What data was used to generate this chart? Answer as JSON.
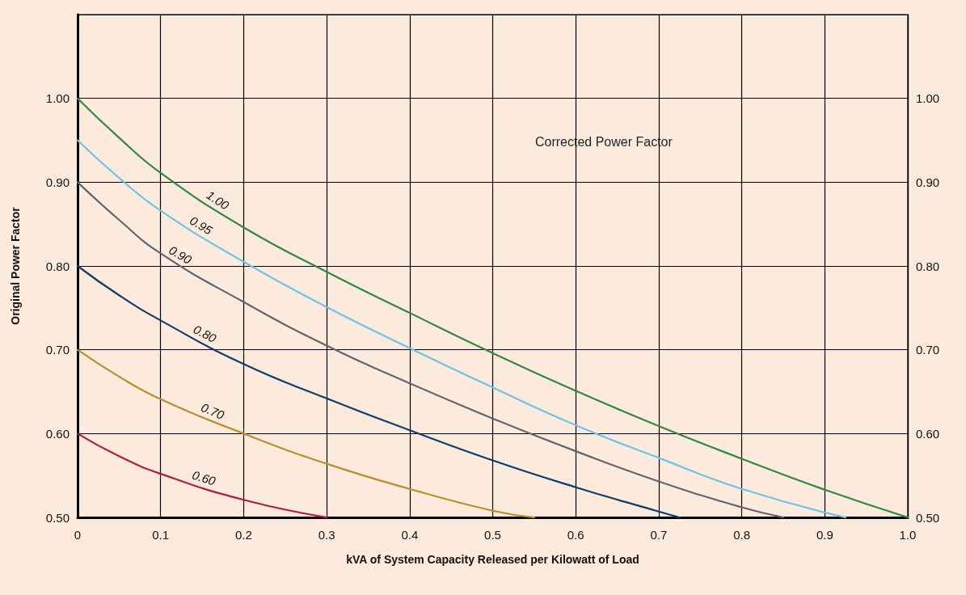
{
  "chart_data": {
    "type": "line",
    "xlabel": "kVA of System Capacity Released per Kilowatt of Load",
    "ylabel": "Original Power Factor",
    "annotations": [
      "Corrected Power Factor"
    ],
    "xlim": [
      0,
      1.0
    ],
    "xticks": [
      0,
      0.1,
      0.2,
      0.3,
      0.4,
      0.5,
      0.6,
      0.7,
      0.8,
      0.9,
      {
        "value": 1.0,
        "label": "1.0"
      }
    ],
    "ylim": [
      0.5,
      1.1
    ],
    "yticks": [
      {
        "value": 0.5,
        "label": "0.50"
      },
      {
        "value": 0.6,
        "label": "0.60"
      },
      {
        "value": 0.7,
        "label": "0.70"
      },
      {
        "value": 0.8,
        "label": "0.80"
      },
      {
        "value": 0.9,
        "label": "0.90"
      },
      {
        "value": 1.0,
        "label": "1.00"
      },
      {
        "value": 1.1,
        "label": null
      }
    ],
    "y2lim": [
      0.5,
      1.1
    ],
    "y2ticks": [
      {
        "value": 0.5,
        "label": "0.50"
      },
      {
        "value": 0.6,
        "label": "0.60"
      },
      {
        "value": 0.7,
        "label": "0.70"
      },
      {
        "value": 0.8,
        "label": "0.80"
      },
      {
        "value": 0.9,
        "label": "0.90"
      },
      {
        "value": 1.0,
        "label": "1.00"
      },
      {
        "value": 1.1,
        "label": null
      }
    ],
    "grid": true,
    "marker": "none",
    "line_style": "solid",
    "series": [
      {
        "name": "1.00",
        "color": "#2e8b3e",
        "x": [
          0,
          0.05,
          0.1,
          0.2,
          0.3,
          0.4,
          0.5,
          0.6,
          0.7,
          0.8,
          0.9,
          1.0
        ],
        "values": [
          1.0,
          0.953,
          0.911,
          0.846,
          0.793,
          0.744,
          0.696,
          0.651,
          0.609,
          0.57,
          0.533,
          0.5
        ]
      },
      {
        "name": "0.95",
        "color": "#6cc4e8",
        "x": [
          0,
          0.05,
          0.1,
          0.2,
          0.3,
          0.4,
          0.5,
          0.6,
          0.7,
          0.8,
          0.925
        ],
        "values": [
          0.95,
          0.905,
          0.866,
          0.805,
          0.751,
          0.702,
          0.655,
          0.61,
          0.571,
          0.534,
          0.5
        ]
      },
      {
        "name": "0.90",
        "color": "#5f6670",
        "x": [
          0,
          0.05,
          0.1,
          0.2,
          0.3,
          0.4,
          0.5,
          0.6,
          0.7,
          0.8,
          0.85
        ],
        "values": [
          0.9,
          0.855,
          0.815,
          0.757,
          0.705,
          0.66,
          0.618,
          0.579,
          0.543,
          0.512,
          0.5
        ]
      },
      {
        "name": "0.80",
        "color": "#0d3d6b",
        "x": [
          0,
          0.05,
          0.1,
          0.2,
          0.3,
          0.4,
          0.5,
          0.6,
          0.7,
          0.725
        ],
        "values": [
          0.8,
          0.765,
          0.735,
          0.683,
          0.642,
          0.604,
          0.568,
          0.536,
          0.507,
          0.5
        ]
      },
      {
        "name": "0.70",
        "color": "#b8912a",
        "x": [
          0,
          0.05,
          0.1,
          0.2,
          0.3,
          0.4,
          0.5,
          0.55
        ],
        "values": [
          0.7,
          0.668,
          0.641,
          0.6,
          0.564,
          0.534,
          0.508,
          0.5
        ]
      },
      {
        "name": "0.60",
        "color": "#b01c44",
        "x": [
          0,
          0.05,
          0.1,
          0.2,
          0.3
        ],
        "values": [
          0.6,
          0.573,
          0.552,
          0.521,
          0.5
        ]
      }
    ]
  }
}
